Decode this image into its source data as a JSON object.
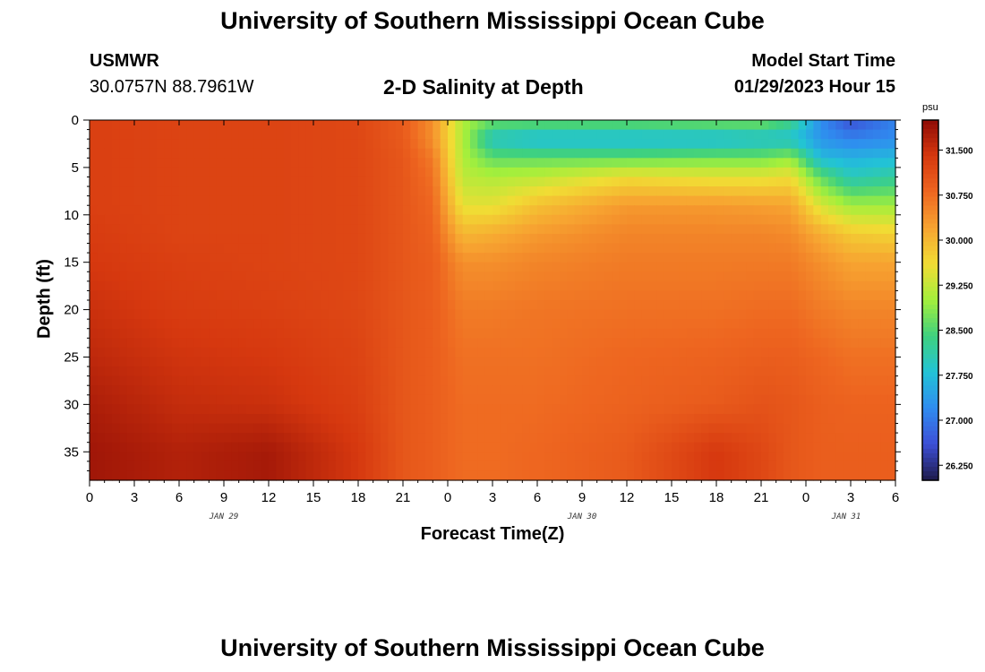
{
  "header": {
    "title": "University of Southern Mississippi Ocean Cube",
    "station": "USMWR",
    "coords": "30.0757N  88.7961W",
    "subtitle": "2-D Salinity at Depth",
    "start_label": "Model Start Time",
    "start_value": "01/29/2023 Hour 15"
  },
  "footer": {
    "title": "University of Southern Mississippi Ocean Cube"
  },
  "colors": {
    "scale": [
      "#1e1b4b",
      "#3d4fd6",
      "#2f8cf0",
      "#22c3d6",
      "#3fd17f",
      "#a3ef3c",
      "#f1dc34",
      "#f7a431",
      "#ee6620",
      "#d6380f",
      "#8e0b05"
    ]
  },
  "chart_data": {
    "type": "heatmap",
    "title": "2-D Salinity at Depth",
    "xlabel": "Forecast Time(Z)",
    "ylabel": "Depth (ft)",
    "x_ticks": [
      "0",
      "3",
      "6",
      "9",
      "12",
      "15",
      "18",
      "21",
      "0",
      "3",
      "6",
      "9",
      "12",
      "15",
      "18",
      "21",
      "0",
      "3",
      "6"
    ],
    "x_dates": [
      "JAN 29",
      "JAN 30",
      "JAN 31"
    ],
    "y_ticks": [
      "0",
      "5",
      "10",
      "15",
      "20",
      "25",
      "30",
      "35"
    ],
    "xlim_hours": [
      0,
      54
    ],
    "ylim_ft": [
      38,
      0
    ],
    "colorbar": {
      "unit": "psu",
      "range": [
        26.0,
        32.0
      ],
      "ticks": [
        "31.500",
        "30.750",
        "30.000",
        "29.250",
        "28.500",
        "27.750",
        "27.000",
        "26.250"
      ]
    },
    "profiles": {
      "columns": [
        "hour",
        "0ft",
        "2ft",
        "4ft",
        "6ft",
        "9ft",
        "12ft",
        "15ft",
        "20ft",
        "25ft",
        "30ft",
        "35ft",
        "38ft"
      ],
      "rows": [
        [
          0,
          31.3,
          31.3,
          31.3,
          31.3,
          31.3,
          31.35,
          31.4,
          31.5,
          31.6,
          31.75,
          31.85,
          31.85
        ],
        [
          6,
          31.25,
          31.25,
          31.25,
          31.25,
          31.25,
          31.25,
          31.3,
          31.35,
          31.45,
          31.55,
          31.7,
          31.7
        ],
        [
          12,
          31.25,
          31.25,
          31.25,
          31.25,
          31.25,
          31.25,
          31.25,
          31.3,
          31.4,
          31.5,
          31.8,
          31.8
        ],
        [
          18,
          31.2,
          31.2,
          31.2,
          31.2,
          31.2,
          31.2,
          31.2,
          31.2,
          31.25,
          31.3,
          31.4,
          31.4
        ],
        [
          21,
          30.95,
          30.95,
          31.0,
          31.0,
          31.0,
          31.0,
          31.0,
          31.0,
          31.0,
          31.0,
          31.0,
          31.0
        ],
        [
          23,
          30.4,
          30.4,
          30.6,
          30.7,
          30.8,
          30.85,
          30.9,
          30.9,
          30.9,
          30.9,
          30.9,
          30.9
        ],
        [
          25,
          29.1,
          29.1,
          29.1,
          29.2,
          29.5,
          30.0,
          30.4,
          30.6,
          30.7,
          30.75,
          30.75,
          30.75
        ],
        [
          27,
          28.7,
          27.9,
          28.6,
          29.1,
          29.5,
          30.1,
          30.4,
          30.6,
          30.7,
          30.75,
          30.75,
          30.75
        ],
        [
          30,
          28.7,
          27.7,
          28.6,
          29.2,
          29.9,
          30.3,
          30.5,
          30.65,
          30.7,
          30.75,
          30.8,
          30.8
        ],
        [
          36,
          28.7,
          27.7,
          28.6,
          29.6,
          30.3,
          30.5,
          30.6,
          30.7,
          30.8,
          30.85,
          30.95,
          30.95
        ],
        [
          42,
          28.8,
          27.7,
          28.7,
          29.5,
          30.3,
          30.5,
          30.6,
          30.7,
          30.85,
          30.95,
          31.4,
          31.4
        ],
        [
          45,
          28.8,
          27.8,
          28.7,
          29.5,
          30.25,
          30.5,
          30.6,
          30.75,
          30.9,
          31.05,
          31.2,
          31.2
        ],
        [
          47,
          28.4,
          27.8,
          28.9,
          29.6,
          30.2,
          30.45,
          30.6,
          30.75,
          30.9,
          31.0,
          31.0,
          31.0
        ],
        [
          49,
          27.2,
          27.3,
          27.7,
          28.6,
          29.4,
          30.1,
          30.4,
          30.6,
          30.8,
          30.9,
          30.9,
          30.9
        ],
        [
          51,
          26.6,
          27.1,
          27.6,
          28.0,
          29.0,
          29.8,
          30.2,
          30.5,
          30.7,
          30.85,
          30.9,
          30.9
        ],
        [
          54,
          27.1,
          27.2,
          27.7,
          28.2,
          29.0,
          29.7,
          30.2,
          30.5,
          30.7,
          30.85,
          30.9,
          30.9
        ]
      ]
    }
  }
}
